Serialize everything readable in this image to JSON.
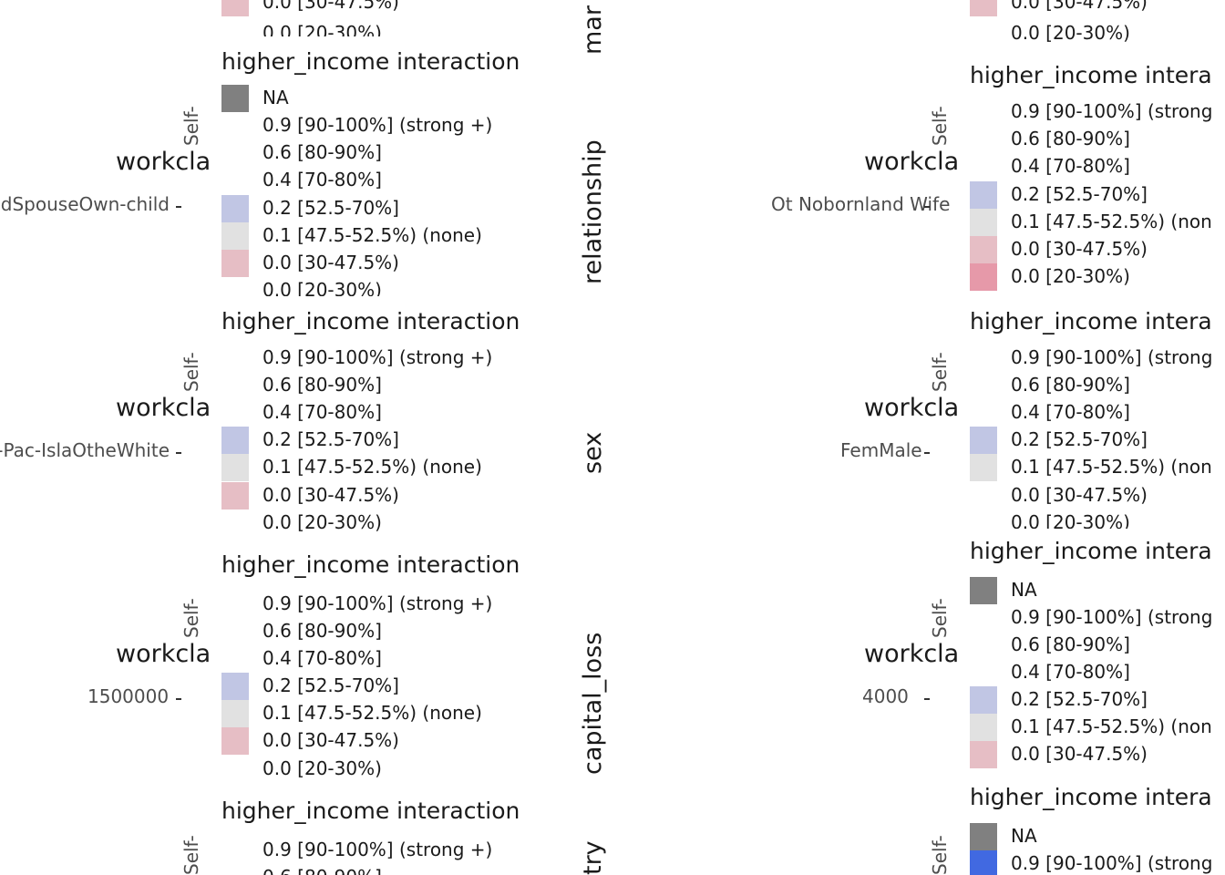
{
  "colors": {
    "NA": "#808080",
    "strong_plus": "#4169e1",
    "p80_90": "#ffffff",
    "p70_80": "#ffffff",
    "p52_70": "#c1c6e4",
    "none": "#e1e1e1",
    "p30_47": "#e6bec5",
    "p20_30": "#e699a9"
  },
  "legend_title": "higher_income interaction",
  "legend_title_trunc": "higher_income intera",
  "labels": {
    "NA": "NA",
    "strong_plus": "0.9 [90-100%] (strong +)",
    "strong_plus_trunc": "0.9 [90-100%] (strong",
    "p80_90": "0.6 [80-90%]",
    "p70_80": "0.4 [70-80%]",
    "p52_70": "0.2 [52.5-70%]",
    "none": "0.1 [47.5-52.5%) (none)",
    "none_trunc": "0.1 [47.5-52.5%) (non",
    "p30_47": "0.0 [30-47.5%)",
    "p20_30": "0.0 [20-30%)"
  },
  "facets": {
    "marital": "mar",
    "relationship": "relationship",
    "sex": "sex",
    "capital_loss": "capital_loss",
    "country": "try"
  },
  "workclass_trunc": "workcla",
  "yaxis_trunc": "Self-",
  "ticks": {
    "left_rel": "Self-inc ChildSpouseOwn-child",
    "left_sex": "in-Pac-IslaOtheWhite",
    "left_cap": "1500000",
    "right_rel": "Ot Nobornland Wife",
    "right_sex": "FemMale",
    "right_cap": "4000"
  },
  "chart_data": {
    "type": "heatmap",
    "title": "",
    "legend": {
      "title": "higher_income interaction",
      "entries": [
        "NA",
        "0.9 [90-100%] (strong +)",
        "0.6 [80-90%]",
        "0.4 [70-80%]",
        "0.2 [52.5-70%]",
        "0.1 [47.5-52.5%) (none)",
        "0.0 [30-47.5%)",
        "0.0 [20-30%)"
      ],
      "placement": "right"
    },
    "facets": [
      "marital-status",
      "relationship",
      "sex",
      "capital_loss",
      "native-country"
    ],
    "y_axis": "workclass"
  }
}
